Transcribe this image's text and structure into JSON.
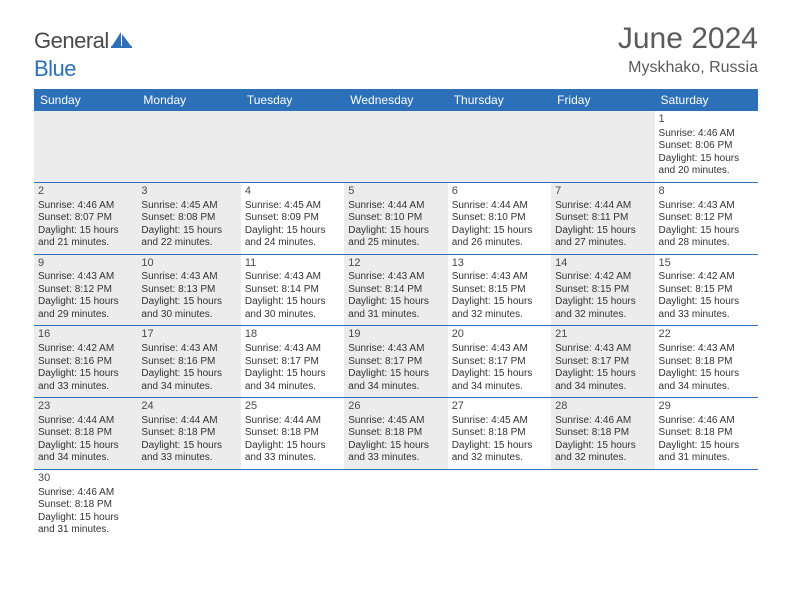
{
  "brand": {
    "general": "General",
    "blue": "Blue"
  },
  "header": {
    "monthYear": "June 2024",
    "location": "Myskhako, Russia"
  },
  "colors": {
    "headerBar": "#2b70b8",
    "shaded": "#ececec",
    "text": "#333333",
    "titleText": "#5a5a5a"
  },
  "dayNames": [
    "Sunday",
    "Monday",
    "Tuesday",
    "Wednesday",
    "Thursday",
    "Friday",
    "Saturday"
  ],
  "weeks": [
    [
      {
        "blank": true,
        "shaded": true
      },
      {
        "blank": true,
        "shaded": true
      },
      {
        "blank": true,
        "shaded": true
      },
      {
        "blank": true,
        "shaded": true
      },
      {
        "blank": true,
        "shaded": true
      },
      {
        "blank": true,
        "shaded": true
      },
      {
        "day": 1,
        "sunrise": "4:46 AM",
        "sunset": "8:06 PM",
        "daylight": "15 hours and 20 minutes."
      }
    ],
    [
      {
        "day": 2,
        "shaded": true,
        "sunrise": "4:46 AM",
        "sunset": "8:07 PM",
        "daylight": "15 hours and 21 minutes."
      },
      {
        "day": 3,
        "shaded": true,
        "sunrise": "4:45 AM",
        "sunset": "8:08 PM",
        "daylight": "15 hours and 22 minutes."
      },
      {
        "day": 4,
        "sunrise": "4:45 AM",
        "sunset": "8:09 PM",
        "daylight": "15 hours and 24 minutes."
      },
      {
        "day": 5,
        "shaded": true,
        "sunrise": "4:44 AM",
        "sunset": "8:10 PM",
        "daylight": "15 hours and 25 minutes."
      },
      {
        "day": 6,
        "sunrise": "4:44 AM",
        "sunset": "8:10 PM",
        "daylight": "15 hours and 26 minutes."
      },
      {
        "day": 7,
        "shaded": true,
        "sunrise": "4:44 AM",
        "sunset": "8:11 PM",
        "daylight": "15 hours and 27 minutes."
      },
      {
        "day": 8,
        "sunrise": "4:43 AM",
        "sunset": "8:12 PM",
        "daylight": "15 hours and 28 minutes."
      }
    ],
    [
      {
        "day": 9,
        "shaded": true,
        "sunrise": "4:43 AM",
        "sunset": "8:12 PM",
        "daylight": "15 hours and 29 minutes."
      },
      {
        "day": 10,
        "shaded": true,
        "sunrise": "4:43 AM",
        "sunset": "8:13 PM",
        "daylight": "15 hours and 30 minutes."
      },
      {
        "day": 11,
        "sunrise": "4:43 AM",
        "sunset": "8:14 PM",
        "daylight": "15 hours and 30 minutes."
      },
      {
        "day": 12,
        "shaded": true,
        "sunrise": "4:43 AM",
        "sunset": "8:14 PM",
        "daylight": "15 hours and 31 minutes."
      },
      {
        "day": 13,
        "sunrise": "4:43 AM",
        "sunset": "8:15 PM",
        "daylight": "15 hours and 32 minutes."
      },
      {
        "day": 14,
        "shaded": true,
        "sunrise": "4:42 AM",
        "sunset": "8:15 PM",
        "daylight": "15 hours and 32 minutes."
      },
      {
        "day": 15,
        "sunrise": "4:42 AM",
        "sunset": "8:15 PM",
        "daylight": "15 hours and 33 minutes."
      }
    ],
    [
      {
        "day": 16,
        "shaded": true,
        "sunrise": "4:42 AM",
        "sunset": "8:16 PM",
        "daylight": "15 hours and 33 minutes."
      },
      {
        "day": 17,
        "shaded": true,
        "sunrise": "4:43 AM",
        "sunset": "8:16 PM",
        "daylight": "15 hours and 34 minutes."
      },
      {
        "day": 18,
        "sunrise": "4:43 AM",
        "sunset": "8:17 PM",
        "daylight": "15 hours and 34 minutes."
      },
      {
        "day": 19,
        "shaded": true,
        "sunrise": "4:43 AM",
        "sunset": "8:17 PM",
        "daylight": "15 hours and 34 minutes."
      },
      {
        "day": 20,
        "sunrise": "4:43 AM",
        "sunset": "8:17 PM",
        "daylight": "15 hours and 34 minutes."
      },
      {
        "day": 21,
        "shaded": true,
        "sunrise": "4:43 AM",
        "sunset": "8:17 PM",
        "daylight": "15 hours and 34 minutes."
      },
      {
        "day": 22,
        "sunrise": "4:43 AM",
        "sunset": "8:18 PM",
        "daylight": "15 hours and 34 minutes."
      }
    ],
    [
      {
        "day": 23,
        "shaded": true,
        "sunrise": "4:44 AM",
        "sunset": "8:18 PM",
        "daylight": "15 hours and 34 minutes."
      },
      {
        "day": 24,
        "shaded": true,
        "sunrise": "4:44 AM",
        "sunset": "8:18 PM",
        "daylight": "15 hours and 33 minutes."
      },
      {
        "day": 25,
        "sunrise": "4:44 AM",
        "sunset": "8:18 PM",
        "daylight": "15 hours and 33 minutes."
      },
      {
        "day": 26,
        "shaded": true,
        "sunrise": "4:45 AM",
        "sunset": "8:18 PM",
        "daylight": "15 hours and 33 minutes."
      },
      {
        "day": 27,
        "sunrise": "4:45 AM",
        "sunset": "8:18 PM",
        "daylight": "15 hours and 32 minutes."
      },
      {
        "day": 28,
        "shaded": true,
        "sunrise": "4:46 AM",
        "sunset": "8:18 PM",
        "daylight": "15 hours and 32 minutes."
      },
      {
        "day": 29,
        "sunrise": "4:46 AM",
        "sunset": "8:18 PM",
        "daylight": "15 hours and 31 minutes."
      }
    ],
    [
      {
        "day": 30,
        "sunrise": "4:46 AM",
        "sunset": "8:18 PM",
        "daylight": "15 hours and 31 minutes."
      },
      {
        "blank": true
      },
      {
        "blank": true
      },
      {
        "blank": true
      },
      {
        "blank": true
      },
      {
        "blank": true
      },
      {
        "blank": true
      }
    ]
  ],
  "labels": {
    "sunrise": "Sunrise:",
    "sunset": "Sunset:",
    "daylight": "Daylight:"
  }
}
